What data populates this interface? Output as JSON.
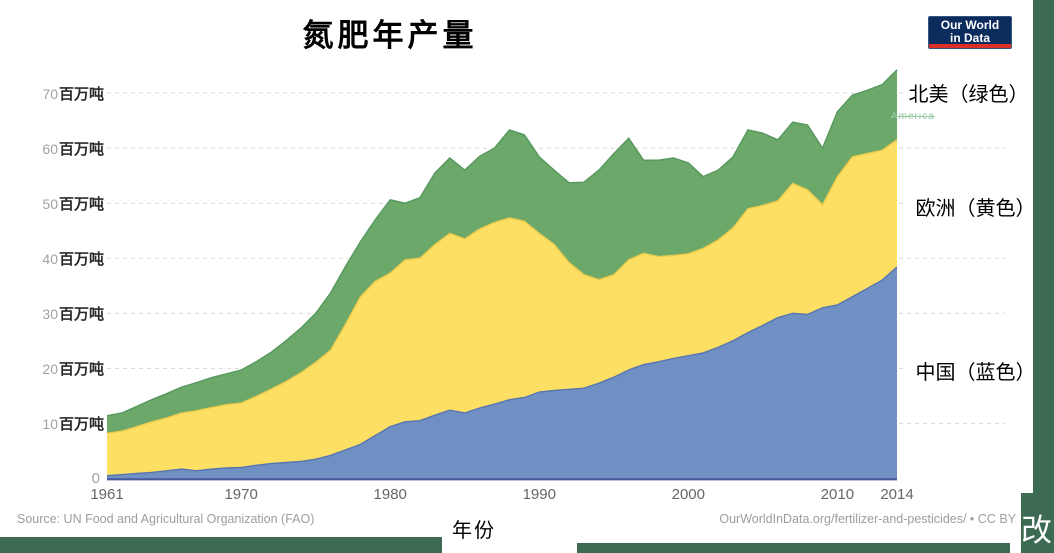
{
  "title": "氮肥年产量",
  "logo": {
    "line1": "Our World",
    "line2": "in Data",
    "bg_color": "#0c2c5e",
    "bar_color": "#dc2f27"
  },
  "legend": [
    {
      "id": "north-america",
      "label": "北美（绿色）"
    },
    {
      "id": "europe",
      "label": "欧洲（黄色）"
    },
    {
      "id": "china",
      "label": "中国（蓝色）"
    }
  ],
  "legend_residual": "America",
  "axis": {
    "x_title": "年份",
    "y_unit": "百万吨",
    "y_zero_label": "0",
    "x_ticks": [
      1961,
      1970,
      1980,
      1990,
      2000,
      2010,
      2014
    ],
    "y_ticks": [
      10,
      20,
      30,
      40,
      50,
      60,
      70
    ]
  },
  "footer": {
    "source": "Source: UN Food and Agricultural Organization (FAO)",
    "link": "OurWorldInData.org/fertilizer-and-pesticides/ • CC BY",
    "watermark": "改"
  },
  "frame_color": "#3d6a53",
  "chart_data": {
    "type": "area",
    "stacked": true,
    "title": "氮肥年产量",
    "xlabel": "年份",
    "ylabel_unit": "百万吨",
    "ylim": [
      0,
      75
    ],
    "xlim": [
      1961,
      2014
    ],
    "grid": "horizontal dashed",
    "legend_position": "right",
    "x": [
      1961,
      1962,
      1963,
      1964,
      1965,
      1966,
      1967,
      1968,
      1969,
      1970,
      1971,
      1972,
      1973,
      1974,
      1975,
      1976,
      1977,
      1978,
      1979,
      1980,
      1981,
      1982,
      1983,
      1984,
      1985,
      1986,
      1987,
      1988,
      1989,
      1990,
      1991,
      1992,
      1993,
      1994,
      1995,
      1996,
      1997,
      1998,
      1999,
      2000,
      2001,
      2002,
      2003,
      2004,
      2005,
      2006,
      2007,
      2008,
      2009,
      2010,
      2011,
      2012,
      2013,
      2014
    ],
    "series": [
      {
        "name": "中国（蓝色）",
        "color": "#7090c4",
        "edge": "#5776b0",
        "values": [
          0.5,
          0.7,
          0.9,
          1.1,
          1.4,
          1.7,
          1.4,
          1.7,
          1.9,
          2.0,
          2.4,
          2.7,
          2.9,
          3.1,
          3.5,
          4.2,
          5.2,
          6.2,
          7.8,
          9.4,
          10.3,
          10.5,
          11.5,
          12.4,
          11.9,
          12.8,
          13.5,
          14.3,
          14.7,
          15.7,
          16.0,
          16.2,
          16.4,
          17.3,
          18.4,
          19.7,
          20.7,
          21.2,
          21.8,
          22.3,
          22.8,
          23.8,
          25.0,
          26.5,
          27.8,
          29.2,
          30.0,
          29.8,
          31.0,
          31.5,
          33.0,
          34.5,
          36.0,
          38.4
        ]
      },
      {
        "name": "欧洲（黄色）",
        "color": "#fcdf63",
        "edge": "#ecca4d",
        "values": [
          7.7,
          7.9,
          8.5,
          9.2,
          9.6,
          10.2,
          10.9,
          11.2,
          11.5,
          11.7,
          12.5,
          13.5,
          14.7,
          16.1,
          17.6,
          19.1,
          22.8,
          26.8,
          28.0,
          27.9,
          29.4,
          29.5,
          31.0,
          32.1,
          31.6,
          32.5,
          33.0,
          33.0,
          32.0,
          28.8,
          26.5,
          23.0,
          20.6,
          18.8,
          18.6,
          20.0,
          20.2,
          19.1,
          18.7,
          18.5,
          19.0,
          19.5,
          20.5,
          22.5,
          21.8,
          21.2,
          23.6,
          22.6,
          18.7,
          23.3,
          25.4,
          24.5,
          23.6,
          23.1
        ]
      },
      {
        "name": "北美（绿色）",
        "color": "#6ba869",
        "edge": "#57985f",
        "values": [
          3.2,
          3.3,
          3.7,
          4.0,
          4.4,
          4.7,
          5.1,
          5.4,
          5.6,
          6.0,
          6.3,
          6.7,
          7.4,
          8.1,
          8.9,
          10.4,
          10.5,
          10.0,
          11.2,
          13.3,
          10.3,
          11.0,
          13.0,
          13.7,
          12.5,
          13.2,
          13.5,
          16.0,
          15.7,
          13.9,
          13.5,
          14.5,
          16.8,
          19.9,
          22.0,
          22.1,
          16.9,
          17.5,
          17.7,
          16.5,
          13.0,
          12.7,
          12.9,
          14.3,
          13.1,
          11.1,
          11.1,
          11.8,
          10.3,
          11.8,
          11.2,
          11.5,
          11.9,
          12.7
        ]
      }
    ]
  }
}
